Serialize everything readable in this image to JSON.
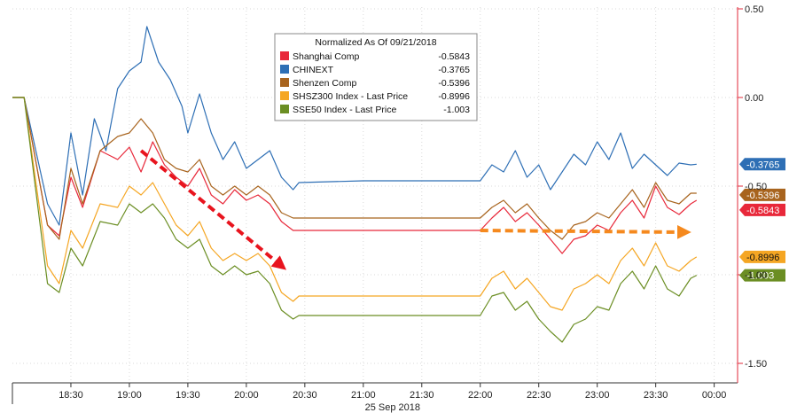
{
  "chart_data": {
    "type": "line",
    "xlabel": "25 Sep 2018",
    "x_ticks": [
      "18:30",
      "19:00",
      "19:30",
      "20:00",
      "20:30",
      "21:00",
      "21:30",
      "22:00",
      "22:30",
      "23:00",
      "23:30",
      "00:00"
    ],
    "y_ticks": [
      "0.50",
      "0.00",
      "-0.50",
      "-1.00",
      "-1.50"
    ],
    "ylim": [
      -1.5,
      0.5
    ],
    "y_axis_side": "right",
    "grid": true,
    "legend": {
      "title": "Normalized As Of 09/21/2018",
      "position": "top-center"
    },
    "series": [
      {
        "name": "Shanghai Comp",
        "last_value": "-0.5843",
        "color": "#e8283a",
        "points": [
          [
            18.0,
            0
          ],
          [
            18.1,
            0
          ],
          [
            18.3,
            -0.72
          ],
          [
            18.4,
            -0.78
          ],
          [
            18.5,
            -0.45
          ],
          [
            18.6,
            -0.62
          ],
          [
            18.75,
            -0.3
          ],
          [
            18.9,
            -0.35
          ],
          [
            19.0,
            -0.28
          ],
          [
            19.1,
            -0.42
          ],
          [
            19.2,
            -0.25
          ],
          [
            19.3,
            -0.38
          ],
          [
            19.4,
            -0.45
          ],
          [
            19.5,
            -0.5
          ],
          [
            19.6,
            -0.4
          ],
          [
            19.7,
            -0.55
          ],
          [
            19.8,
            -0.6
          ],
          [
            19.9,
            -0.52
          ],
          [
            20.0,
            -0.58
          ],
          [
            20.1,
            -0.55
          ],
          [
            20.2,
            -0.6
          ],
          [
            20.3,
            -0.7
          ],
          [
            20.4,
            -0.75
          ],
          [
            20.45,
            -0.75
          ],
          [
            21.0,
            -0.75
          ],
          [
            21.5,
            -0.75
          ],
          [
            22.0,
            -0.75
          ],
          [
            22.1,
            -0.68
          ],
          [
            22.2,
            -0.62
          ],
          [
            22.3,
            -0.7
          ],
          [
            22.4,
            -0.65
          ],
          [
            22.5,
            -0.72
          ],
          [
            22.6,
            -0.8
          ],
          [
            22.7,
            -0.88
          ],
          [
            22.8,
            -0.8
          ],
          [
            22.9,
            -0.78
          ],
          [
            23.0,
            -0.72
          ],
          [
            23.1,
            -0.75
          ],
          [
            23.2,
            -0.65
          ],
          [
            23.3,
            -0.58
          ],
          [
            23.4,
            -0.68
          ],
          [
            23.5,
            -0.5
          ],
          [
            23.6,
            -0.62
          ],
          [
            23.7,
            -0.66
          ],
          [
            23.8,
            -0.6
          ],
          [
            23.85,
            -0.58
          ]
        ]
      },
      {
        "name": "CHINEXT",
        "last_value": "-0.3765",
        "color": "#2e6fb5",
        "points": [
          [
            18.0,
            0
          ],
          [
            18.1,
            0
          ],
          [
            18.3,
            -0.6
          ],
          [
            18.4,
            -0.72
          ],
          [
            18.5,
            -0.2
          ],
          [
            18.6,
            -0.55
          ],
          [
            18.7,
            -0.12
          ],
          [
            18.8,
            -0.3
          ],
          [
            18.9,
            0.05
          ],
          [
            19.0,
            0.15
          ],
          [
            19.1,
            0.2
          ],
          [
            19.15,
            0.4
          ],
          [
            19.25,
            0.2
          ],
          [
            19.35,
            0.1
          ],
          [
            19.45,
            -0.05
          ],
          [
            19.5,
            -0.2
          ],
          [
            19.6,
            0.02
          ],
          [
            19.7,
            -0.2
          ],
          [
            19.8,
            -0.35
          ],
          [
            19.9,
            -0.25
          ],
          [
            20.0,
            -0.4
          ],
          [
            20.1,
            -0.35
          ],
          [
            20.2,
            -0.3
          ],
          [
            20.3,
            -0.45
          ],
          [
            20.4,
            -0.52
          ],
          [
            20.45,
            -0.48
          ],
          [
            21.0,
            -0.47
          ],
          [
            21.5,
            -0.47
          ],
          [
            22.0,
            -0.47
          ],
          [
            22.1,
            -0.38
          ],
          [
            22.2,
            -0.42
          ],
          [
            22.3,
            -0.3
          ],
          [
            22.4,
            -0.45
          ],
          [
            22.5,
            -0.38
          ],
          [
            22.6,
            -0.52
          ],
          [
            22.7,
            -0.42
          ],
          [
            22.8,
            -0.32
          ],
          [
            22.9,
            -0.38
          ],
          [
            23.0,
            -0.25
          ],
          [
            23.1,
            -0.35
          ],
          [
            23.2,
            -0.2
          ],
          [
            23.3,
            -0.4
          ],
          [
            23.4,
            -0.32
          ],
          [
            23.5,
            -0.38
          ],
          [
            23.6,
            -0.44
          ],
          [
            23.7,
            -0.37
          ],
          [
            23.8,
            -0.38
          ],
          [
            23.85,
            -0.3765
          ]
        ]
      },
      {
        "name": "Shenzen Comp",
        "last_value": "-0.5396",
        "color": "#a8641e",
        "points": [
          [
            18.0,
            0
          ],
          [
            18.1,
            0
          ],
          [
            18.3,
            -0.72
          ],
          [
            18.4,
            -0.8
          ],
          [
            18.5,
            -0.4
          ],
          [
            18.6,
            -0.6
          ],
          [
            18.75,
            -0.3
          ],
          [
            18.9,
            -0.22
          ],
          [
            19.0,
            -0.2
          ],
          [
            19.1,
            -0.12
          ],
          [
            19.2,
            -0.2
          ],
          [
            19.3,
            -0.35
          ],
          [
            19.4,
            -0.4
          ],
          [
            19.5,
            -0.42
          ],
          [
            19.6,
            -0.35
          ],
          [
            19.7,
            -0.5
          ],
          [
            19.8,
            -0.55
          ],
          [
            19.9,
            -0.5
          ],
          [
            20.0,
            -0.55
          ],
          [
            20.1,
            -0.5
          ],
          [
            20.2,
            -0.55
          ],
          [
            20.3,
            -0.65
          ],
          [
            20.4,
            -0.68
          ],
          [
            20.45,
            -0.68
          ],
          [
            21.0,
            -0.68
          ],
          [
            21.5,
            -0.68
          ],
          [
            22.0,
            -0.68
          ],
          [
            22.1,
            -0.62
          ],
          [
            22.2,
            -0.58
          ],
          [
            22.3,
            -0.65
          ],
          [
            22.4,
            -0.6
          ],
          [
            22.5,
            -0.68
          ],
          [
            22.6,
            -0.75
          ],
          [
            22.7,
            -0.8
          ],
          [
            22.8,
            -0.72
          ],
          [
            22.9,
            -0.7
          ],
          [
            23.0,
            -0.65
          ],
          [
            23.1,
            -0.68
          ],
          [
            23.2,
            -0.6
          ],
          [
            23.3,
            -0.52
          ],
          [
            23.4,
            -0.62
          ],
          [
            23.5,
            -0.48
          ],
          [
            23.6,
            -0.58
          ],
          [
            23.7,
            -0.6
          ],
          [
            23.8,
            -0.54
          ],
          [
            23.85,
            -0.54
          ]
        ]
      },
      {
        "name": "SHSZ300 Index - Last Price",
        "last_value": "-0.8996",
        "color": "#f5a623",
        "points": [
          [
            18.0,
            0
          ],
          [
            18.1,
            0
          ],
          [
            18.3,
            -0.95
          ],
          [
            18.4,
            -1.05
          ],
          [
            18.5,
            -0.75
          ],
          [
            18.6,
            -0.85
          ],
          [
            18.75,
            -0.6
          ],
          [
            18.9,
            -0.62
          ],
          [
            19.0,
            -0.5
          ],
          [
            19.1,
            -0.55
          ],
          [
            19.2,
            -0.48
          ],
          [
            19.3,
            -0.6
          ],
          [
            19.4,
            -0.72
          ],
          [
            19.5,
            -0.78
          ],
          [
            19.6,
            -0.7
          ],
          [
            19.7,
            -0.85
          ],
          [
            19.8,
            -0.92
          ],
          [
            19.9,
            -0.88
          ],
          [
            20.0,
            -0.92
          ],
          [
            20.1,
            -0.88
          ],
          [
            20.2,
            -0.95
          ],
          [
            20.3,
            -1.1
          ],
          [
            20.4,
            -1.15
          ],
          [
            20.45,
            -1.12
          ],
          [
            21.0,
            -1.12
          ],
          [
            21.5,
            -1.12
          ],
          [
            22.0,
            -1.12
          ],
          [
            22.1,
            -1.02
          ],
          [
            22.2,
            -0.98
          ],
          [
            22.3,
            -1.08
          ],
          [
            22.4,
            -1.02
          ],
          [
            22.5,
            -1.1
          ],
          [
            22.6,
            -1.18
          ],
          [
            22.7,
            -1.2
          ],
          [
            22.8,
            -1.08
          ],
          [
            22.9,
            -1.05
          ],
          [
            23.0,
            -1.0
          ],
          [
            23.1,
            -1.05
          ],
          [
            23.2,
            -0.92
          ],
          [
            23.3,
            -0.85
          ],
          [
            23.4,
            -0.95
          ],
          [
            23.5,
            -0.82
          ],
          [
            23.6,
            -0.95
          ],
          [
            23.7,
            -0.98
          ],
          [
            23.8,
            -0.92
          ],
          [
            23.85,
            -0.8996
          ]
        ]
      },
      {
        "name": "SSE50 Index - Last Price",
        "last_value": "-1.003",
        "color": "#6b8e23",
        "points": [
          [
            18.0,
            0
          ],
          [
            18.1,
            0
          ],
          [
            18.3,
            -1.05
          ],
          [
            18.4,
            -1.1
          ],
          [
            18.5,
            -0.85
          ],
          [
            18.6,
            -0.95
          ],
          [
            18.75,
            -0.7
          ],
          [
            18.9,
            -0.72
          ],
          [
            19.0,
            -0.6
          ],
          [
            19.1,
            -0.65
          ],
          [
            19.2,
            -0.6
          ],
          [
            19.3,
            -0.68
          ],
          [
            19.4,
            -0.8
          ],
          [
            19.5,
            -0.85
          ],
          [
            19.6,
            -0.8
          ],
          [
            19.7,
            -0.95
          ],
          [
            19.8,
            -1.0
          ],
          [
            19.9,
            -0.95
          ],
          [
            20.0,
            -1.0
          ],
          [
            20.1,
            -0.98
          ],
          [
            20.2,
            -1.05
          ],
          [
            20.3,
            -1.2
          ],
          [
            20.4,
            -1.25
          ],
          [
            20.45,
            -1.23
          ],
          [
            21.0,
            -1.23
          ],
          [
            21.5,
            -1.23
          ],
          [
            22.0,
            -1.23
          ],
          [
            22.1,
            -1.12
          ],
          [
            22.2,
            -1.1
          ],
          [
            22.3,
            -1.2
          ],
          [
            22.4,
            -1.15
          ],
          [
            22.5,
            -1.25
          ],
          [
            22.6,
            -1.32
          ],
          [
            22.7,
            -1.38
          ],
          [
            22.8,
            -1.28
          ],
          [
            22.9,
            -1.25
          ],
          [
            23.0,
            -1.18
          ],
          [
            23.1,
            -1.2
          ],
          [
            23.2,
            -1.05
          ],
          [
            23.3,
            -0.98
          ],
          [
            23.4,
            -1.08
          ],
          [
            23.5,
            -0.95
          ],
          [
            23.6,
            -1.08
          ],
          [
            23.7,
            -1.12
          ],
          [
            23.8,
            -1.02
          ],
          [
            23.85,
            -1.003
          ]
        ]
      }
    ],
    "annotations": [
      {
        "type": "arrow",
        "style": "dashed",
        "color": "#e8141e",
        "from": [
          19.1,
          -0.3
        ],
        "to": [
          20.3,
          -0.95
        ]
      },
      {
        "type": "arrow",
        "style": "dashed",
        "color": "#f5891e",
        "from": [
          22.0,
          -0.75
        ],
        "to": [
          23.75,
          -0.76
        ]
      }
    ],
    "value_tags": [
      {
        "text": "-0.3765",
        "value": -0.3765,
        "bg": "#2e6fb5",
        "fg": "#ffffff"
      },
      {
        "text": "-0.5396",
        "value": -0.5396,
        "bg": "#a8641e",
        "fg": "#ffffff",
        "partially_hidden": true
      },
      {
        "text": "-0.5843",
        "value": -0.5843,
        "bg": "#e8283a",
        "fg": "#ffffff"
      },
      {
        "text": "-0.8996",
        "value": -0.8996,
        "bg": "#f5a623",
        "fg": "#111111"
      },
      {
        "text": "-1.003",
        "value": -1.003,
        "bg": "#6b8e23",
        "fg": "#ffffff"
      }
    ]
  }
}
